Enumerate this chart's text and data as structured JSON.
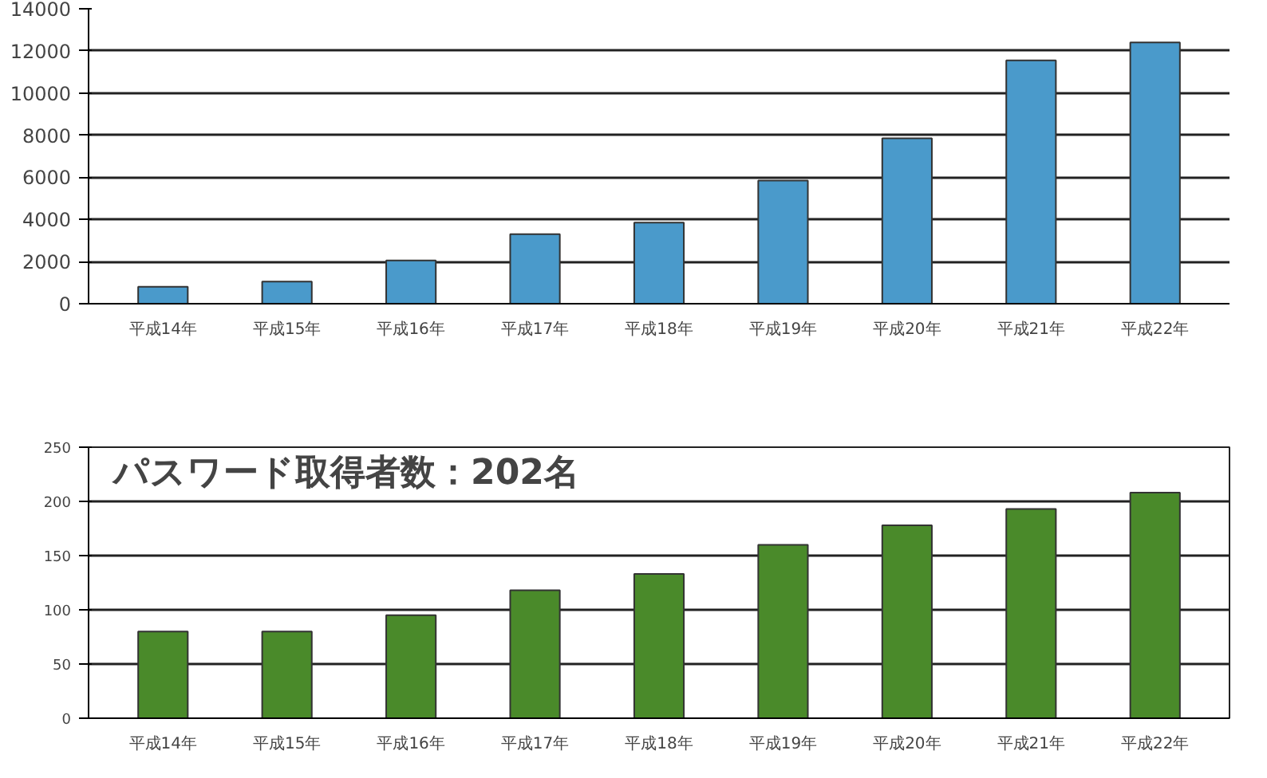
{
  "chart_data": [
    {
      "type": "bar",
      "categories": [
        "平成14年",
        "平成15年",
        "平成16年",
        "平成17年",
        "平成18年",
        "平成19年",
        "平成20年",
        "平成21年",
        "平成22年"
      ],
      "values": [
        800,
        1050,
        2050,
        3300,
        3850,
        5850,
        7850,
        11550,
        12400
      ],
      "color": "#4a9acb",
      "ylim": [
        0,
        14000
      ],
      "yticks": [
        0,
        2000,
        4000,
        6000,
        8000,
        10000,
        12000,
        14000
      ],
      "grid": "y"
    },
    {
      "type": "bar",
      "categories": [
        "平成14年",
        "平成15年",
        "平成16年",
        "平成17年",
        "平成18年",
        "平成19年",
        "平成20年",
        "平成21年",
        "平成22年"
      ],
      "values": [
        80,
        80,
        95,
        118,
        133,
        160,
        178,
        193,
        208
      ],
      "color": "#4a8a2a",
      "ylim": [
        0,
        250
      ],
      "yticks": [
        0,
        50,
        100,
        150,
        200,
        250
      ],
      "grid": "y",
      "annotations": [
        "パスワード取得者数：202名"
      ]
    }
  ]
}
